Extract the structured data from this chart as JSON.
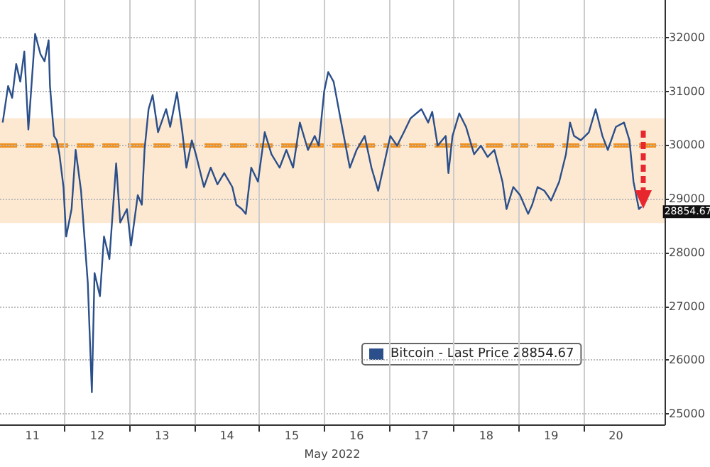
{
  "chart_data": {
    "type": "line",
    "xlabel": "May 2022",
    "legend": "bottom",
    "grid": true,
    "marker": "none",
    "line_style": "solid",
    "xlim": [
      "2022-05-11T00:00",
      "2022-05-21T06:00"
    ],
    "xticks": [
      {
        "value": "2022-05-11T12:00",
        "label": "11"
      },
      {
        "value": "2022-05-12T00:00",
        "label": null
      },
      {
        "value": "2022-05-12T12:00",
        "label": "12"
      },
      {
        "value": "2022-05-13T00:00",
        "label": null
      },
      {
        "value": "2022-05-13T12:00",
        "label": "13"
      },
      {
        "value": "2022-05-14T00:00",
        "label": null
      },
      {
        "value": "2022-05-14T12:00",
        "label": "14"
      },
      {
        "value": "2022-05-15T00:00",
        "label": null
      },
      {
        "value": "2022-05-15T12:00",
        "label": "15"
      },
      {
        "value": "2022-05-16T00:00",
        "label": null
      },
      {
        "value": "2022-05-16T12:00",
        "label": "16"
      },
      {
        "value": "2022-05-17T00:00",
        "label": null
      },
      {
        "value": "2022-05-17T12:00",
        "label": "17"
      },
      {
        "value": "2022-05-18T00:00",
        "label": null
      },
      {
        "value": "2022-05-18T12:00",
        "label": "18"
      },
      {
        "value": "2022-05-19T00:00",
        "label": null
      },
      {
        "value": "2022-05-19T12:00",
        "label": "19"
      },
      {
        "value": "2022-05-20T00:00",
        "label": null
      },
      {
        "value": "2022-05-20T12:00",
        "label": "20"
      }
    ],
    "ylim": [
      24800,
      32700
    ],
    "yticks": [
      25000,
      26000,
      27000,
      28000,
      29000,
      30000,
      31000,
      32000
    ],
    "ref_lines": [
      {
        "axis": "y",
        "value": 30000,
        "color": "#f0901e",
        "line_style": "dashed"
      }
    ],
    "bands": [
      {
        "axis": "y",
        "from": 28550,
        "to": 30500,
        "color": "#fde9d2"
      }
    ],
    "annotations": [
      {
        "text": "28854.67",
        "x": "2022-05-20T21:30",
        "y": 28854.67
      }
    ],
    "series": [
      {
        "name": "Bitcoin - Last Price 28854.67",
        "color": "#2b4f8a",
        "x": [
          "2022-05-11T01:00",
          "2022-05-11T03:00",
          "2022-05-11T04:30",
          "2022-05-11T06:00",
          "2022-05-11T07:30",
          "2022-05-11T09:00",
          "2022-05-11T10:30",
          "2022-05-11T13:00",
          "2022-05-11T15:00",
          "2022-05-11T16:30",
          "2022-05-11T18:00",
          "2022-05-11T18:30",
          "2022-05-11T20:00",
          "2022-05-11T21:00",
          "2022-05-11T22:00",
          "2022-05-11T23:30",
          "2022-05-12T00:30",
          "2022-05-12T02:30",
          "2022-05-12T04:00",
          "2022-05-12T06:00",
          "2022-05-12T08:30",
          "2022-05-12T10:00",
          "2022-05-12T11:00",
          "2022-05-12T13:00",
          "2022-05-12T14:30",
          "2022-05-12T16:30",
          "2022-05-12T19:00",
          "2022-05-12T20:30",
          "2022-05-12T23:00",
          "2022-05-13T00:30",
          "2022-05-13T03:00",
          "2022-05-13T04:30",
          "2022-05-13T05:30",
          "2022-05-13T07:00",
          "2022-05-13T08:30",
          "2022-05-13T10:30",
          "2022-05-13T13:30",
          "2022-05-13T15:00",
          "2022-05-13T17:30",
          "2022-05-13T19:30",
          "2022-05-13T21:00",
          "2022-05-13T23:00",
          "2022-05-14T00:30",
          "2022-05-14T03:30",
          "2022-05-14T06:00",
          "2022-05-14T08:30",
          "2022-05-14T11:00",
          "2022-05-14T14:00",
          "2022-05-14T15:30",
          "2022-05-14T17:30",
          "2022-05-14T19:00",
          "2022-05-14T21:00",
          "2022-05-14T23:30",
          "2022-05-15T02:00",
          "2022-05-15T04:30",
          "2022-05-15T07:30",
          "2022-05-15T10:00",
          "2022-05-15T12:30",
          "2022-05-15T15:00",
          "2022-05-15T18:00",
          "2022-05-15T20:30",
          "2022-05-15T22:00",
          "2022-05-16T00:00",
          "2022-05-16T01:30",
          "2022-05-16T03:30",
          "2022-05-16T06:00",
          "2022-05-16T09:30",
          "2022-05-16T12:00",
          "2022-05-16T15:00",
          "2022-05-16T17:30",
          "2022-05-16T20:00",
          "2022-05-16T23:00",
          "2022-05-17T00:30",
          "2022-05-17T03:00",
          "2022-05-17T05:30",
          "2022-05-17T08:00",
          "2022-05-17T12:00",
          "2022-05-17T14:30",
          "2022-05-17T16:00",
          "2022-05-17T18:00",
          "2022-05-17T21:00",
          "2022-05-17T22:00",
          "2022-05-17T23:30",
          "2022-05-18T02:00",
          "2022-05-18T04:30",
          "2022-05-18T07:30",
          "2022-05-18T10:00",
          "2022-05-18T12:30",
          "2022-05-18T15:00",
          "2022-05-18T18:00",
          "2022-05-18T19:30",
          "2022-05-18T22:00",
          "2022-05-19T00:30",
          "2022-05-19T03:30",
          "2022-05-19T05:00",
          "2022-05-19T07:00",
          "2022-05-19T09:30",
          "2022-05-19T12:00",
          "2022-05-19T15:00",
          "2022-05-19T17:30",
          "2022-05-19T19:00",
          "2022-05-19T20:30",
          "2022-05-19T23:00",
          "2022-05-20T02:00",
          "2022-05-20T04:30",
          "2022-05-20T07:00",
          "2022-05-20T09:00",
          "2022-05-20T12:00",
          "2022-05-20T15:00",
          "2022-05-20T17:00",
          "2022-05-20T18:30",
          "2022-05-20T20:30",
          "2022-05-20T21:30"
        ],
        "values": [
          30420,
          31100,
          30880,
          31510,
          31180,
          31740,
          30290,
          32070,
          31690,
          31560,
          31950,
          31100,
          30170,
          30090,
          29830,
          29220,
          28300,
          28810,
          29910,
          29150,
          27440,
          25400,
          27620,
          27190,
          28300,
          27880,
          29660,
          28560,
          28810,
          28130,
          29070,
          28890,
          29910,
          30670,
          30930,
          30240,
          30670,
          30340,
          30980,
          30240,
          29580,
          30090,
          29830,
          29220,
          29580,
          29270,
          29480,
          29220,
          28890,
          28810,
          28720,
          29580,
          29320,
          30240,
          29830,
          29580,
          29910,
          29580,
          30420,
          29910,
          30170,
          29990,
          31000,
          31360,
          31180,
          30500,
          29580,
          29910,
          30170,
          29580,
          29150,
          29830,
          30170,
          29990,
          30240,
          30500,
          30670,
          30420,
          30620,
          29990,
          30170,
          29480,
          30170,
          30590,
          30340,
          29830,
          29990,
          29780,
          29910,
          29320,
          28810,
          29220,
          29070,
          28720,
          28890,
          29220,
          29150,
          28970,
          29320,
          29830,
          30420,
          30170,
          30090,
          30240,
          30670,
          30170,
          29910,
          30340,
          30420,
          30090,
          29320,
          28810,
          28854.67
        ]
      }
    ]
  }
}
